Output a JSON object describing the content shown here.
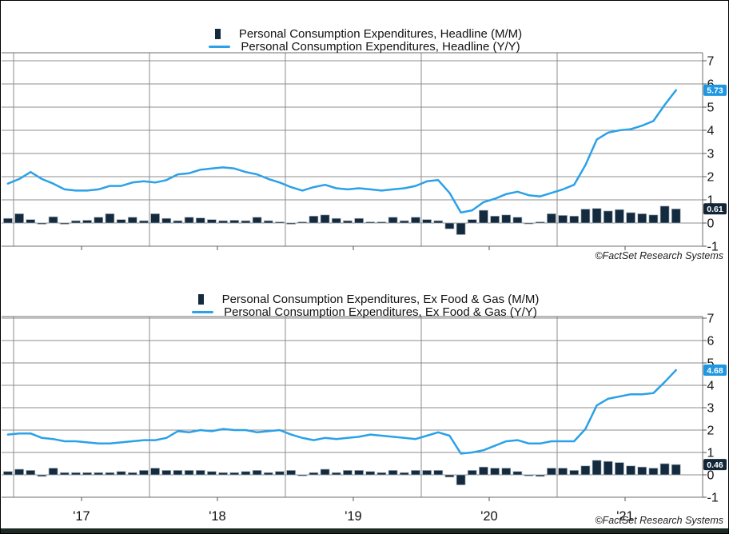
{
  "page": {
    "copyright": "©FactSet Research Systems",
    "colors": {
      "bar": "#142a3e",
      "bar_stroke": "#a9b6bf",
      "line": "#2ba1e8",
      "line_callout_bg": "#1e96e0",
      "bar_callout_bg": "#132638",
      "callout_text": "#ffffff",
      "gridline": "#8d8d8d",
      "frame": "#6e6e6e",
      "tick": "#555555",
      "axis_text": "#111111",
      "copyright_text": "#222222",
      "bottom_bar": "#1b2a22",
      "page_border": "#000000"
    }
  },
  "chart_data": [
    {
      "type": "combo-bar-line",
      "title": "Personal Consumption Expenditures, Headline",
      "grid": true,
      "legend_position": "top-center",
      "ylim": [
        -1,
        7.35
      ],
      "y_ticks": [
        7,
        6,
        5,
        4,
        3,
        2,
        1,
        0,
        -1
      ],
      "x_tick_labels": [
        "'17",
        "'18",
        "'19",
        "'20",
        "'21"
      ],
      "x_months": [
        "2016-12",
        "2017-01",
        "2017-02",
        "2017-03",
        "2017-04",
        "2017-05",
        "2017-06",
        "2017-07",
        "2017-08",
        "2017-09",
        "2017-10",
        "2017-11",
        "2017-12",
        "2018-01",
        "2018-02",
        "2018-03",
        "2018-04",
        "2018-05",
        "2018-06",
        "2018-07",
        "2018-08",
        "2018-09",
        "2018-10",
        "2018-11",
        "2018-12",
        "2019-01",
        "2019-02",
        "2019-03",
        "2019-04",
        "2019-05",
        "2019-06",
        "2019-07",
        "2019-08",
        "2019-09",
        "2019-10",
        "2019-11",
        "2019-12",
        "2020-01",
        "2020-02",
        "2020-03",
        "2020-04",
        "2020-05",
        "2020-06",
        "2020-07",
        "2020-08",
        "2020-09",
        "2020-10",
        "2020-11",
        "2020-12",
        "2021-01",
        "2021-02",
        "2021-03",
        "2021-04",
        "2021-05",
        "2021-06",
        "2021-07",
        "2021-08",
        "2021-09",
        "2021-10",
        "2021-11"
      ],
      "series": [
        {
          "name": "Personal Consumption Expenditures, Headline (M/M)",
          "type": "bar",
          "values": [
            0.2,
            0.4,
            0.15,
            -0.05,
            0.27,
            -0.05,
            0.1,
            0.12,
            0.25,
            0.4,
            0.15,
            0.25,
            0.1,
            0.4,
            0.2,
            0.1,
            0.25,
            0.22,
            0.15,
            0.1,
            0.12,
            0.1,
            0.25,
            0.1,
            0.05,
            -0.05,
            0.05,
            0.3,
            0.35,
            0.2,
            0.1,
            0.2,
            0.05,
            0.05,
            0.25,
            0.1,
            0.25,
            0.15,
            0.1,
            -0.25,
            -0.5,
            0.15,
            0.55,
            0.3,
            0.35,
            0.25,
            -0.03,
            0.05,
            0.4,
            0.33,
            0.3,
            0.6,
            0.63,
            0.52,
            0.58,
            0.45,
            0.4,
            0.35,
            0.73,
            0.61
          ]
        },
        {
          "name": "Personal Consumption Expenditures, Headline (Y/Y)",
          "type": "line",
          "values": [
            1.7,
            1.9,
            2.2,
            1.9,
            1.7,
            1.45,
            1.4,
            1.4,
            1.45,
            1.6,
            1.6,
            1.75,
            1.8,
            1.75,
            1.85,
            2.1,
            2.15,
            2.3,
            2.35,
            2.4,
            2.35,
            2.2,
            2.1,
            1.9,
            1.75,
            1.55,
            1.4,
            1.55,
            1.65,
            1.5,
            1.45,
            1.5,
            1.45,
            1.4,
            1.45,
            1.5,
            1.6,
            1.8,
            1.85,
            1.3,
            0.45,
            0.55,
            0.9,
            1.05,
            1.25,
            1.35,
            1.2,
            1.15,
            1.3,
            1.45,
            1.65,
            2.5,
            3.6,
            3.9,
            4.0,
            4.05,
            4.2,
            4.4,
            5.1,
            5.73
          ]
        }
      ],
      "last_value_callouts": {
        "line": 5.73,
        "bar": 0.61
      }
    },
    {
      "type": "combo-bar-line",
      "title": "Personal Consumption Expenditures, Ex Food & Gas",
      "grid": true,
      "legend_position": "top-center",
      "ylim": [
        -1,
        7.1
      ],
      "y_ticks": [
        7,
        6,
        5,
        4,
        3,
        2,
        1,
        0,
        -1
      ],
      "x_tick_labels": [
        "'17",
        "'18",
        "'19",
        "'20",
        "'21"
      ],
      "x_months": [
        "2016-12",
        "2017-01",
        "2017-02",
        "2017-03",
        "2017-04",
        "2017-05",
        "2017-06",
        "2017-07",
        "2017-08",
        "2017-09",
        "2017-10",
        "2017-11",
        "2017-12",
        "2018-01",
        "2018-02",
        "2018-03",
        "2018-04",
        "2018-05",
        "2018-06",
        "2018-07",
        "2018-08",
        "2018-09",
        "2018-10",
        "2018-11",
        "2018-12",
        "2019-01",
        "2019-02",
        "2019-03",
        "2019-04",
        "2019-05",
        "2019-06",
        "2019-07",
        "2019-08",
        "2019-09",
        "2019-10",
        "2019-11",
        "2019-12",
        "2020-01",
        "2020-02",
        "2020-03",
        "2020-04",
        "2020-05",
        "2020-06",
        "2020-07",
        "2020-08",
        "2020-09",
        "2020-10",
        "2020-11",
        "2020-12",
        "2021-01",
        "2021-02",
        "2021-03",
        "2021-04",
        "2021-05",
        "2021-06",
        "2021-07",
        "2021-08",
        "2021-09",
        "2021-10",
        "2021-11"
      ],
      "series": [
        {
          "name": "Personal Consumption Expenditures, Ex Food & Gas (M/M)",
          "type": "bar",
          "values": [
            0.15,
            0.25,
            0.2,
            -0.07,
            0.3,
            0.1,
            0.1,
            0.1,
            0.1,
            0.1,
            0.15,
            0.1,
            0.2,
            0.3,
            0.2,
            0.2,
            0.2,
            0.2,
            0.15,
            0.1,
            0.1,
            0.15,
            0.2,
            0.1,
            0.15,
            0.2,
            -0.05,
            0.1,
            0.25,
            0.1,
            0.2,
            0.2,
            0.15,
            0.1,
            0.2,
            0.1,
            0.2,
            0.2,
            0.2,
            -0.1,
            -0.45,
            0.2,
            0.35,
            0.3,
            0.3,
            0.15,
            -0.05,
            -0.07,
            0.3,
            0.3,
            0.2,
            0.4,
            0.65,
            0.6,
            0.55,
            0.4,
            0.35,
            0.3,
            0.5,
            0.46
          ]
        },
        {
          "name": "Personal Consumption Expenditures, Ex Food & Gas (Y/Y)",
          "type": "line",
          "values": [
            1.8,
            1.85,
            1.85,
            1.65,
            1.6,
            1.5,
            1.5,
            1.45,
            1.4,
            1.4,
            1.45,
            1.5,
            1.55,
            1.55,
            1.65,
            1.95,
            1.9,
            2.0,
            1.95,
            2.05,
            2.0,
            2.0,
            1.9,
            1.95,
            2.0,
            1.8,
            1.65,
            1.55,
            1.65,
            1.6,
            1.65,
            1.7,
            1.8,
            1.75,
            1.7,
            1.65,
            1.6,
            1.75,
            1.9,
            1.75,
            0.95,
            1.0,
            1.1,
            1.3,
            1.5,
            1.55,
            1.4,
            1.4,
            1.5,
            1.5,
            1.5,
            2.05,
            3.1,
            3.4,
            3.5,
            3.6,
            3.6,
            3.65,
            4.15,
            4.68
          ]
        }
      ],
      "last_value_callouts": {
        "line": 4.68,
        "bar": 0.46
      }
    }
  ]
}
